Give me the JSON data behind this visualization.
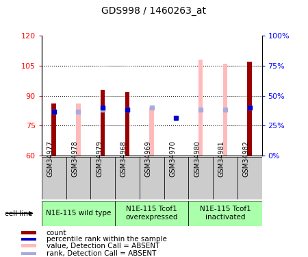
{
  "title": "GDS998 / 1460263_at",
  "samples": [
    "GSM34977",
    "GSM34978",
    "GSM34979",
    "GSM34968",
    "GSM34969",
    "GSM34970",
    "GSM34980",
    "GSM34981",
    "GSM34982"
  ],
  "ylim_left": [
    60,
    120
  ],
  "ylim_right": [
    0,
    100
  ],
  "yticks_left": [
    60,
    75,
    90,
    105,
    120
  ],
  "ytick_labels_left": [
    "60",
    "75",
    "90",
    "105",
    "120"
  ],
  "yticks_right": [
    0,
    25,
    50,
    75,
    100
  ],
  "ytick_labels_right": [
    "0%",
    "25%",
    "50%",
    "75%",
    "100%"
  ],
  "count_color": "#990000",
  "pink_color": "#ffbbbb",
  "blue_dark_color": "#0000cc",
  "blue_light_color": "#aaaadd",
  "count_bar_width": 0.18,
  "pink_bar_width": 0.18,
  "blue_marker_size": 5,
  "count_values": [
    86,
    0,
    93,
    92,
    0,
    0,
    0,
    0,
    107
  ],
  "pink_values": [
    0,
    86,
    0,
    0,
    84,
    60,
    108,
    106,
    106
  ],
  "blue_dark_values": [
    82,
    0,
    84,
    83,
    0,
    79,
    0,
    0,
    84
  ],
  "blue_light_values": [
    82,
    82,
    83,
    83,
    84,
    0,
    83,
    83,
    84
  ],
  "has_count": [
    true,
    false,
    true,
    true,
    false,
    false,
    false,
    false,
    true
  ],
  "has_pink": [
    false,
    true,
    false,
    false,
    true,
    true,
    true,
    true,
    true
  ],
  "has_blue_dark": [
    true,
    false,
    true,
    true,
    false,
    true,
    false,
    false,
    true
  ],
  "has_blue_light": [
    true,
    true,
    true,
    true,
    true,
    false,
    true,
    true,
    true
  ],
  "group_starts": [
    0,
    3,
    6
  ],
  "group_ends": [
    3,
    6,
    9
  ],
  "group_labels": [
    "N1E-115 wild type",
    "N1E-115 Tcof1\noverexpressed",
    "N1E-115 Tcof1\ninactivated"
  ],
  "group_color": "#aaffaa",
  "sample_box_color": "#cccccc",
  "cell_line_label": "cell line",
  "legend_items": [
    {
      "color": "#990000",
      "label": "count"
    },
    {
      "color": "#0000cc",
      "label": "percentile rank within the sample"
    },
    {
      "color": "#ffbbbb",
      "label": "value, Detection Call = ABSENT"
    },
    {
      "color": "#aaaadd",
      "label": "rank, Detection Call = ABSENT"
    }
  ]
}
